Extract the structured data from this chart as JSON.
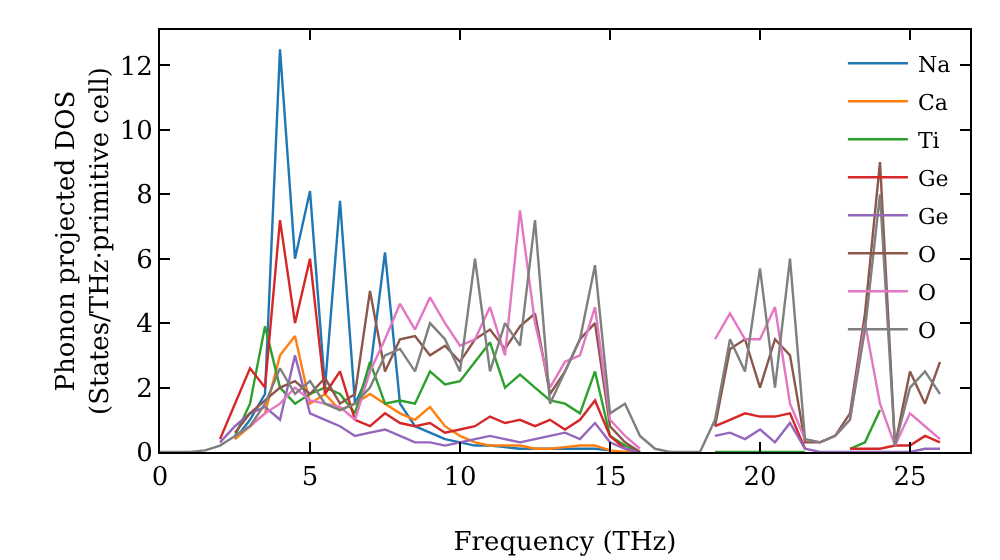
{
  "chart_data": {
    "type": "line",
    "xlabel": "Frequency (THz)",
    "ylabel": "Phonon projected DOS\n(States/THz·primitive cell)",
    "x": [
      0,
      0.5,
      1,
      1.5,
      2,
      2.5,
      3,
      3.5,
      4,
      4.5,
      5,
      5.5,
      6,
      6.5,
      7,
      7.5,
      8,
      8.5,
      9,
      9.5,
      10,
      10.5,
      11,
      11.5,
      12,
      12.5,
      13,
      13.5,
      14,
      14.5,
      15,
      15.5,
      16,
      16.5,
      17,
      17.5,
      18,
      18.5,
      19,
      19.5,
      20,
      20.5,
      21,
      21.5,
      22,
      22.5,
      23,
      23.5,
      24,
      24.5,
      25,
      25.5,
      26
    ],
    "xlim": [
      0,
      27
    ],
    "xticks": [
      0,
      5,
      10,
      15,
      20,
      25
    ],
    "ylim": [
      0,
      13.1
    ],
    "yticks": [
      0,
      2,
      4,
      6,
      8,
      10,
      12
    ],
    "grid": false,
    "legend": "top right",
    "marker": "none",
    "line_style": "solid",
    "series": [
      {
        "name": "Na",
        "color": "#1f77b4",
        "values": [
          null,
          null,
          null,
          null,
          null,
          0.4,
          1.0,
          1.8,
          12.5,
          6.0,
          8.1,
          2.0,
          7.8,
          1.5,
          2.5,
          6.2,
          1.5,
          0.8,
          0.6,
          0.4,
          0.3,
          0.2,
          0.2,
          0.15,
          0.1,
          0.1,
          0.1,
          0.1,
          0.1,
          0.1,
          0.05,
          null,
          null,
          null,
          null,
          null,
          null,
          null,
          null,
          null,
          null,
          null,
          null,
          null,
          null,
          null,
          null,
          null,
          null,
          null,
          null,
          null,
          null
        ]
      },
      {
        "name": "Ca",
        "color": "#ff7f0e",
        "values": [
          null,
          null,
          null,
          null,
          null,
          0.4,
          0.8,
          1.2,
          3.0,
          3.6,
          1.5,
          1.8,
          1.3,
          1.5,
          1.8,
          1.5,
          1.2,
          1.0,
          1.4,
          0.8,
          0.5,
          0.3,
          0.2,
          0.2,
          0.2,
          0.1,
          0.1,
          0.15,
          0.2,
          0.2,
          0.05,
          0,
          0,
          null,
          null,
          null,
          null,
          null,
          null,
          null,
          null,
          null,
          null,
          null,
          null,
          null,
          null,
          null,
          null,
          null,
          null,
          null,
          null
        ]
      },
      {
        "name": "Ti",
        "color": "#2ca02c",
        "values": [
          null,
          null,
          null,
          null,
          null,
          0.5,
          1.5,
          3.9,
          2.0,
          1.5,
          1.8,
          2.0,
          1.8,
          1.2,
          2.8,
          1.5,
          1.6,
          1.5,
          2.5,
          2.1,
          2.2,
          2.8,
          3.4,
          2.0,
          2.4,
          2.0,
          1.6,
          1.5,
          1.2,
          2.5,
          0.5,
          0.2,
          0,
          null,
          null,
          null,
          null,
          0,
          0,
          0,
          0,
          0,
          0,
          0,
          null,
          null,
          0.1,
          0.3,
          1.3,
          null,
          null,
          null,
          null
        ]
      },
      {
        "name": "Ge",
        "color": "#d62728",
        "values": [
          null,
          null,
          null,
          null,
          0.4,
          1.5,
          2.6,
          2.0,
          7.2,
          4.0,
          6.0,
          1.8,
          2.5,
          1.0,
          0.8,
          1.2,
          0.9,
          0.8,
          0.9,
          0.6,
          0.7,
          0.8,
          1.1,
          0.9,
          1.0,
          0.8,
          1.0,
          0.7,
          1.0,
          1.6,
          0.5,
          0.1,
          0,
          null,
          null,
          null,
          null,
          0.8,
          1.0,
          1.2,
          1.1,
          1.1,
          1.2,
          0.1,
          null,
          null,
          0.1,
          0.1,
          0.1,
          0.2,
          0.2,
          0.5,
          0.3
        ]
      },
      {
        "name": "Ge",
        "color": "#9467bd",
        "values": [
          null,
          null,
          null,
          null,
          0.3,
          0.8,
          1.2,
          1.4,
          1.0,
          3.0,
          1.2,
          1.0,
          0.8,
          0.5,
          0.6,
          0.7,
          0.5,
          0.3,
          0.3,
          0.2,
          0.3,
          0.4,
          0.5,
          0.4,
          0.3,
          0.4,
          0.5,
          0.6,
          0.4,
          0.9,
          0.3,
          0.1,
          0,
          null,
          null,
          null,
          null,
          0.5,
          0.6,
          0.4,
          0.7,
          0.3,
          0.9,
          0.1,
          0,
          0,
          0,
          0,
          0,
          0,
          0,
          0.1,
          0.1
        ]
      },
      {
        "name": "O",
        "color": "#8c564b",
        "values": [
          null,
          null,
          null,
          null,
          null,
          0.6,
          1.2,
          1.6,
          2.0,
          2.2,
          1.8,
          2.3,
          1.5,
          1.8,
          5.0,
          2.5,
          3.5,
          3.6,
          3.0,
          3.3,
          2.8,
          3.5,
          3.8,
          3.2,
          3.9,
          4.3,
          1.8,
          2.5,
          3.5,
          4.0,
          0.8,
          0.3,
          0,
          null,
          null,
          null,
          null,
          0.8,
          3.2,
          3.5,
          2.0,
          3.5,
          3.0,
          0.3,
          0.3,
          0.5,
          1.2,
          4.3,
          9.0,
          0.2,
          2.5,
          1.5,
          2.8
        ]
      },
      {
        "name": "O",
        "color": "#e377c2",
        "values": [
          null,
          null,
          null,
          null,
          null,
          0.5,
          0.8,
          1.2,
          1.5,
          2.0,
          1.6,
          1.5,
          1.4,
          1.0,
          2.5,
          3.5,
          4.6,
          3.8,
          4.8,
          4.0,
          3.3,
          3.5,
          4.5,
          3.0,
          7.5,
          4.0,
          2.0,
          2.8,
          3.0,
          4.5,
          1.0,
          0.5,
          0.1,
          null,
          null,
          null,
          null,
          3.5,
          4.3,
          3.5,
          3.5,
          4.5,
          1.5,
          0.4,
          0.3,
          0.5,
          1.0,
          4.0,
          1.5,
          0.2,
          1.2,
          0.8,
          0.4
        ]
      },
      {
        "name": "O",
        "color": "#7f7f7f",
        "values": [
          0,
          0,
          0,
          0.05,
          0.2,
          0.5,
          0.8,
          1.5,
          2.6,
          1.8,
          2.2,
          1.5,
          1.3,
          1.5,
          2.0,
          3.0,
          3.2,
          2.5,
          4.0,
          3.5,
          2.5,
          6.0,
          2.5,
          4.0,
          3.3,
          7.2,
          1.5,
          2.5,
          3.5,
          5.8,
          1.2,
          1.5,
          0.5,
          0.1,
          0,
          0,
          0,
          1.0,
          3.5,
          2.5,
          5.7,
          2.0,
          6.0,
          0.4,
          0.3,
          0.5,
          1.0,
          3.8,
          8.0,
          0.2,
          2.0,
          2.5,
          1.8
        ]
      }
    ]
  }
}
